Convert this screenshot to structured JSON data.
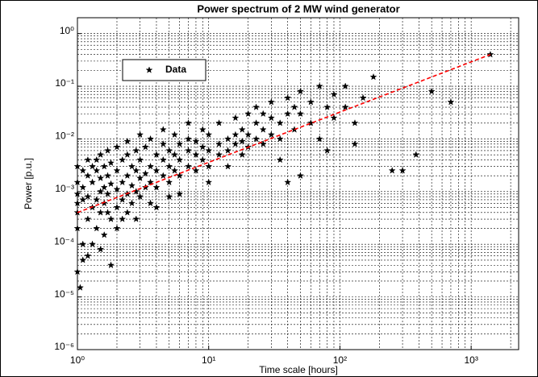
{
  "chart_data": {
    "type": "scatter",
    "title": "Power spectrum of 2 MW wind generator",
    "xlabel": "Time scale [hours]",
    "ylabel": "Power [p.u.]",
    "xscale": "log",
    "yscale": "log",
    "grid": true,
    "legend": "upper left",
    "xlim": [
      1,
      2300
    ],
    "ylim": [
      1e-06,
      2
    ],
    "xticks": [
      {
        "value": 1,
        "label": "10⁰"
      },
      {
        "value": 10,
        "label": "10¹"
      },
      {
        "value": 100,
        "label": "10²"
      },
      {
        "value": 1000,
        "label": "10³"
      }
    ],
    "yticks": [
      {
        "value": 1e-06,
        "label": "10⁻⁶"
      },
      {
        "value": 1e-05,
        "label": "10⁻⁵"
      },
      {
        "value": 0.0001,
        "label": "10⁻⁴"
      },
      {
        "value": 0.001,
        "label": "10⁻³"
      },
      {
        "value": 0.01,
        "label": "10⁻²"
      },
      {
        "value": 0.1,
        "label": "10⁻¹"
      },
      {
        "value": 1,
        "label": "10⁰"
      }
    ],
    "series": [
      {
        "name": "Data",
        "color": "#000000",
        "marker": "star",
        "x": [
          1,
          1,
          1,
          1,
          1,
          1,
          1,
          1.05,
          1.1,
          1.1,
          1.1,
          1.1,
          1.1,
          1.2,
          1.2,
          1.2,
          1.2,
          1.2,
          1.3,
          1.3,
          1.3,
          1.3,
          1.4,
          1.4,
          1.4,
          1.4,
          1.5,
          1.5,
          1.5,
          1.5,
          1.5,
          1.6,
          1.6,
          1.6,
          1.6,
          1.7,
          1.7,
          1.7,
          1.7,
          1.8,
          1.8,
          1.8,
          1.8,
          2,
          2,
          2,
          2,
          2,
          2.2,
          2.2,
          2.2,
          2.2,
          2.4,
          2.4,
          2.4,
          2.4,
          2.4,
          2.6,
          2.6,
          2.6,
          2.8,
          2.8,
          2.8,
          2.8,
          3,
          3,
          3,
          3,
          3.3,
          3.3,
          3.3,
          3.6,
          3.6,
          3.6,
          3.6,
          4,
          4,
          4,
          4,
          4.5,
          4.5,
          4.5,
          4.5,
          5,
          5,
          5,
          5,
          5.5,
          5.5,
          5.5,
          6,
          6,
          6,
          6,
          7,
          7,
          7,
          7,
          8,
          8,
          8,
          9,
          9,
          9,
          10,
          10,
          10,
          10,
          12,
          12,
          12,
          14,
          14,
          14,
          16,
          16,
          16,
          18,
          18,
          18,
          20,
          20,
          20,
          23,
          23,
          23,
          26,
          26,
          26,
          30,
          30,
          30,
          35,
          35,
          35,
          40,
          40,
          40,
          45,
          45,
          50,
          50,
          50,
          60,
          60,
          70,
          70,
          80,
          80,
          90,
          90,
          110,
          110,
          130,
          130,
          150,
          180,
          250,
          300,
          380,
          500,
          700,
          1400
        ],
        "values": [
          0.0009,
          0.0004,
          0.0015,
          3e-05,
          0.0002,
          0.003,
          0.0006,
          1.5e-05,
          5e-05,
          0.0012,
          0.0025,
          0.0001,
          0.0007,
          0.0003,
          0.002,
          0.0008,
          6e-05,
          0.004,
          0.0005,
          0.0015,
          0.0001,
          0.003,
          0.0007,
          0.0002,
          0.0025,
          0.004,
          0.001,
          0.0004,
          8e-05,
          0.005,
          0.0018,
          0.0006,
          0.0012,
          0.003,
          0.00015,
          0.0009,
          0.002,
          0.0004,
          0.006,
          0.0014,
          0.0003,
          0.0035,
          4e-05,
          0.0011,
          0.0025,
          0.0005,
          0.007,
          0.0002,
          0.0015,
          0.004,
          0.0007,
          0.0003,
          0.002,
          0.0009,
          0.005,
          0.0004,
          0.009,
          0.0013,
          0.003,
          0.0006,
          0.0025,
          0.001,
          0.006,
          0.0003,
          0.0018,
          0.004,
          0.0008,
          0.012,
          0.0022,
          0.0012,
          0.007,
          0.003,
          0.0015,
          0.0006,
          0.01,
          0.0025,
          0.005,
          0.0012,
          0.0005,
          0.004,
          0.002,
          0.008,
          0.015,
          0.003,
          0.006,
          0.0015,
          0.0008,
          0.005,
          0.0025,
          0.012,
          0.004,
          0.008,
          0.002,
          0.0009,
          0.006,
          0.003,
          0.01,
          0.02,
          0.005,
          0.009,
          0.0025,
          0.007,
          0.004,
          0.015,
          0.006,
          0.012,
          0.003,
          0.0015,
          0.008,
          0.005,
          0.02,
          0.01,
          0.006,
          0.003,
          0.012,
          0.008,
          0.025,
          0.009,
          0.015,
          0.005,
          0.03,
          0.012,
          0.007,
          0.02,
          0.04,
          0.01,
          0.015,
          0.03,
          0.008,
          0.025,
          0.012,
          0.05,
          0.02,
          0.01,
          0.004,
          0.06,
          0.03,
          0.0015,
          0.04,
          0.015,
          0.08,
          0.03,
          0.002,
          0.05,
          0.02,
          0.1,
          0.01,
          0.04,
          0.006,
          0.07,
          0.025,
          0.1,
          0.04,
          0.02,
          0.008,
          0.06,
          0.15,
          0.0025,
          0.0025,
          0.005,
          0.08,
          0.05,
          0.4
        ]
      },
      {
        "color": "#ff0000",
        "style": "dashed",
        "x": [
          1,
          1400
        ],
        "values": [
          0.0004,
          0.4
        ]
      }
    ]
  }
}
